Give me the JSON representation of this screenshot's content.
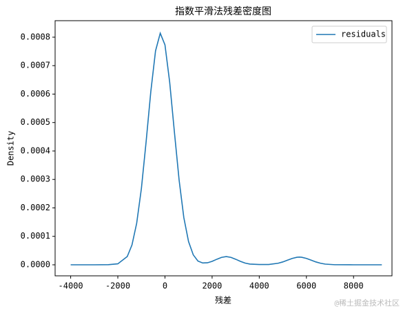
{
  "chart_data": {
    "type": "line",
    "title": "指数平滑法残差密度图",
    "x_label": "残差",
    "y_label": "Density",
    "x": [
      -4000,
      -3000,
      -2400,
      -2000,
      -1600,
      -1400,
      -1200,
      -1000,
      -800,
      -600,
      -400,
      -200,
      0,
      200,
      400,
      600,
      800,
      1000,
      1200,
      1400,
      1600,
      1800,
      2000,
      2200,
      2400,
      2600,
      2800,
      3000,
      3200,
      3400,
      3600,
      4000,
      4400,
      4800,
      5000,
      5200,
      5400,
      5600,
      5700,
      5800,
      6000,
      6200,
      6400,
      6600,
      6800,
      7200,
      8000,
      9200
    ],
    "series": [
      {
        "name": "residuals",
        "color": "#1f77b4",
        "values": [
          0,
          0,
          4e-07,
          3.4e-06,
          2.9e-05,
          6.95e-05,
          0.000146,
          0.000268,
          0.000432,
          0.000609,
          0.000752,
          0.000814,
          0.000773,
          0.000642,
          0.000467,
          0.000298,
          0.000166,
          8.16e-05,
          3.5e-05,
          1.3e-05,
          6.5e-06,
          7e-06,
          1.2e-05,
          1.95e-05,
          2.6e-05,
          2.9e-05,
          2.6e-05,
          1.95e-05,
          1.2e-05,
          6e-06,
          2.5e-06,
          1e-06,
          1e-06,
          5.4e-06,
          1.01e-05,
          1.64e-05,
          2.25e-05,
          2.65e-05,
          2.7e-05,
          2.65e-05,
          2.25e-05,
          1.64e-05,
          1.01e-05,
          5.4e-06,
          2.4e-06,
          3e-07,
          0,
          0
        ]
      }
    ],
    "xlim": [
      -4660,
      9630
    ],
    "ylim": [
      -3.88e-05,
      0.000858
    ],
    "xticks": [
      -4000,
      -2000,
      0,
      2000,
      4000,
      6000,
      8000
    ],
    "yticks": [
      {
        "value": 0,
        "label": "0.0000"
      },
      {
        "value": 0.0001,
        "label": "0.0001"
      },
      {
        "value": 0.0002,
        "label": "0.0002"
      },
      {
        "value": 0.0003,
        "label": "0.0003"
      },
      {
        "value": 0.0004,
        "label": "0.0004"
      },
      {
        "value": 0.0005,
        "label": "0.0005"
      },
      {
        "value": 0.0006,
        "label": "0.0006"
      },
      {
        "value": 0.0007,
        "label": "0.0007"
      },
      {
        "value": 0.0008,
        "label": "0.0008"
      }
    ],
    "legend": "upper right",
    "watermark": "@稀土掘金技术社区"
  }
}
